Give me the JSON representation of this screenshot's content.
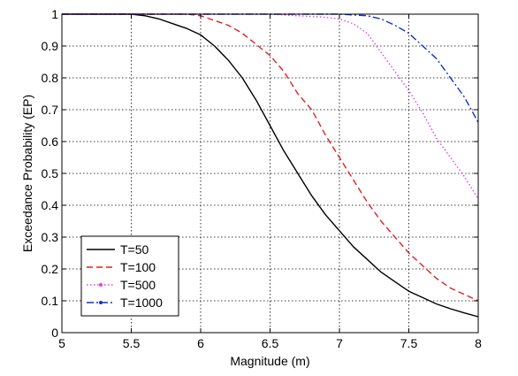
{
  "chart_data": {
    "type": "line",
    "title": "",
    "xlabel": "Magnitude (m)",
    "ylabel": "Exceedance Probability (EP)",
    "xlim": [
      5,
      8
    ],
    "ylim": [
      0,
      1
    ],
    "xticks": [
      "5",
      "5.5",
      "6",
      "6.5",
      "7",
      "7.5",
      "8"
    ],
    "yticks": [
      "0",
      "0.1",
      "0.2",
      "0.3",
      "0.4",
      "0.5",
      "0.6",
      "0.7",
      "0.8",
      "0.9",
      "1"
    ],
    "grid": true,
    "legend_position": "bottom-left",
    "series": [
      {
        "name": "T=50",
        "color": "#000000",
        "style": "solid",
        "x": [
          5.0,
          5.25,
          5.5,
          5.6,
          5.7,
          5.8,
          5.9,
          6.0,
          6.1,
          6.2,
          6.3,
          6.4,
          6.5,
          6.6,
          6.7,
          6.8,
          6.9,
          7.0,
          7.1,
          7.2,
          7.3,
          7.4,
          7.5,
          7.6,
          7.7,
          7.8,
          7.9,
          8.0
        ],
        "y": [
          1.0,
          1.0,
          1.0,
          0.995,
          0.985,
          0.97,
          0.955,
          0.935,
          0.9,
          0.855,
          0.8,
          0.73,
          0.65,
          0.57,
          0.5,
          0.43,
          0.37,
          0.32,
          0.27,
          0.23,
          0.19,
          0.16,
          0.13,
          0.11,
          0.09,
          0.075,
          0.062,
          0.05
        ]
      },
      {
        "name": "T=100",
        "color": "#e02020",
        "style": "dashed",
        "x": [
          5.0,
          5.5,
          5.9,
          6.0,
          6.1,
          6.2,
          6.3,
          6.4,
          6.5,
          6.6,
          6.7,
          6.8,
          6.9,
          7.0,
          7.1,
          7.2,
          7.3,
          7.4,
          7.5,
          7.6,
          7.7,
          7.8,
          7.9,
          8.0
        ],
        "y": [
          1.0,
          1.0,
          1.0,
          0.995,
          0.98,
          0.965,
          0.94,
          0.905,
          0.87,
          0.82,
          0.75,
          0.7,
          0.62,
          0.55,
          0.48,
          0.41,
          0.35,
          0.3,
          0.25,
          0.21,
          0.17,
          0.14,
          0.12,
          0.1
        ]
      },
      {
        "name": "T=500",
        "color": "#e040e0",
        "style": "dotted",
        "x": [
          5.0,
          6.0,
          6.5,
          6.9,
          7.0,
          7.1,
          7.2,
          7.3,
          7.4,
          7.5,
          7.6,
          7.7,
          7.8,
          7.9,
          8.0
        ],
        "y": [
          1.0,
          1.0,
          1.0,
          0.99,
          0.985,
          0.97,
          0.94,
          0.88,
          0.82,
          0.76,
          0.69,
          0.61,
          0.55,
          0.49,
          0.42
        ]
      },
      {
        "name": "T=1000",
        "color": "#1030d0",
        "style": "dashdot",
        "x": [
          5.0,
          6.0,
          7.0,
          7.2,
          7.3,
          7.4,
          7.5,
          7.6,
          7.7,
          7.8,
          7.9,
          8.0
        ],
        "y": [
          1.0,
          1.0,
          1.0,
          0.995,
          0.985,
          0.965,
          0.94,
          0.9,
          0.86,
          0.8,
          0.74,
          0.66
        ]
      }
    ]
  }
}
